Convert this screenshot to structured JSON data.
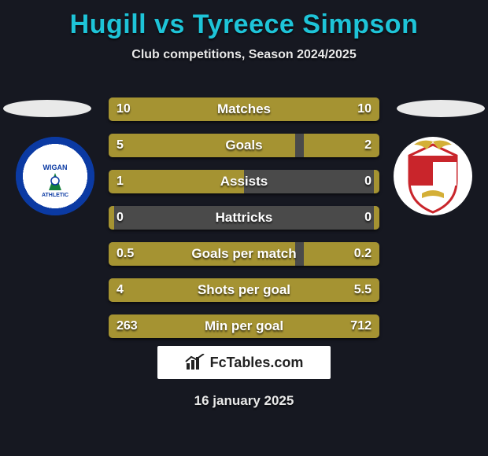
{
  "title": "Hugill vs Tyreece Simpson",
  "subtitle": "Club competitions, Season 2024/2025",
  "date": "16 january 2025",
  "brand": "FcTables.com",
  "colors": {
    "background": "#161821",
    "title": "#1ec4d8",
    "bar_fill": "#a59332",
    "bar_empty": "#4a4a4a",
    "text": "#ffffff"
  },
  "teams": {
    "left": {
      "name": "Wigan Athletic",
      "badge_colors": [
        "#0b3aa3",
        "#ffffff"
      ]
    },
    "right": {
      "name": "Stevenage",
      "badge_colors": [
        "#c9252b",
        "#ffffff",
        "#d4af37"
      ]
    }
  },
  "rows": [
    {
      "label": "Matches",
      "left_value": "10",
      "right_value": "10",
      "left_pct": 50,
      "right_pct": 50
    },
    {
      "label": "Goals",
      "left_value": "5",
      "right_value": "2",
      "left_pct": 69,
      "right_pct": 28
    },
    {
      "label": "Assists",
      "left_value": "1",
      "right_value": "0",
      "left_pct": 50,
      "right_pct": 2
    },
    {
      "label": "Hattricks",
      "left_value": "0",
      "right_value": "0",
      "left_pct": 2,
      "right_pct": 2
    },
    {
      "label": "Goals per match",
      "left_value": "0.5",
      "right_value": "0.2",
      "left_pct": 69,
      "right_pct": 28
    },
    {
      "label": "Shots per goal",
      "left_value": "4",
      "right_value": "5.5",
      "left_pct": 58,
      "right_pct": 42
    },
    {
      "label": "Min per goal",
      "left_value": "263",
      "right_value": "712",
      "left_pct": 73,
      "right_pct": 27
    }
  ]
}
